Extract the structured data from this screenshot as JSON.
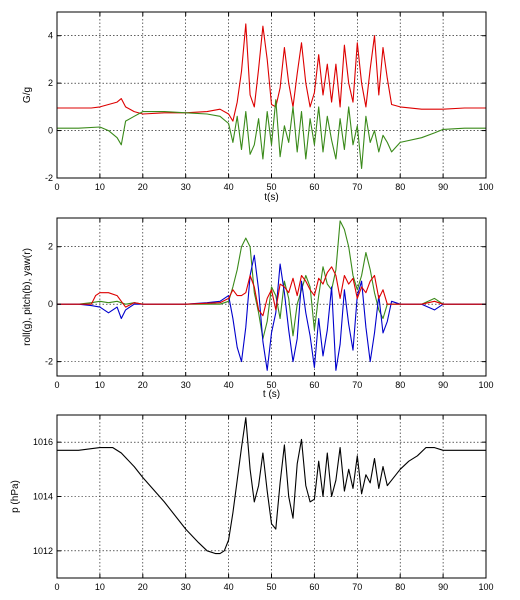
{
  "chart_data": [
    {
      "type": "line",
      "xlabel": "t(s)",
      "ylabel": "G/g",
      "xlim": [
        0,
        100
      ],
      "ylim": [
        -2,
        5
      ],
      "xticks": [
        "0",
        "10",
        "20",
        "30",
        "40",
        "50",
        "60",
        "70",
        "80",
        "90",
        "100"
      ],
      "yticks": [
        "-2",
        "0",
        "2",
        "4"
      ],
      "grid": true,
      "series": [
        {
          "color": "#dd0000",
          "x": [
            0,
            5,
            8,
            10,
            12,
            14,
            15,
            16,
            18,
            20,
            25,
            30,
            35,
            38,
            40,
            41,
            42,
            43,
            44,
            45,
            46,
            47,
            48,
            49,
            50,
            51,
            52,
            53,
            54,
            55,
            56,
            57,
            58,
            59,
            60,
            61,
            62,
            63,
            64,
            65,
            66,
            67,
            68,
            69,
            70,
            71,
            72,
            73,
            74,
            75,
            76,
            77,
            78,
            80,
            85,
            90,
            95,
            100
          ],
          "y": [
            0.95,
            0.95,
            0.95,
            1.0,
            1.1,
            1.2,
            1.35,
            1.0,
            0.8,
            0.7,
            0.75,
            0.75,
            0.8,
            0.9,
            0.7,
            0.4,
            1.2,
            2.5,
            4.5,
            1.5,
            1.0,
            2.6,
            4.4,
            3.0,
            1.1,
            1.0,
            1.8,
            3.5,
            2.0,
            1.0,
            2.4,
            3.7,
            2.0,
            1.0,
            1.6,
            3.2,
            1.5,
            2.8,
            1.2,
            2.8,
            1.0,
            3.6,
            2.0,
            1.2,
            3.7,
            2.0,
            1.0,
            2.6,
            4.0,
            1.5,
            3.5,
            2.2,
            1.1,
            1.0,
            0.9,
            0.9,
            0.95,
            0.95
          ]
        },
        {
          "color": "#3a8a1a",
          "x": [
            0,
            5,
            10,
            12,
            14,
            15,
            16,
            18,
            20,
            25,
            30,
            35,
            38,
            40,
            41,
            42,
            43,
            44,
            45,
            46,
            47,
            48,
            49,
            50,
            51,
            52,
            53,
            54,
            55,
            56,
            57,
            58,
            59,
            60,
            61,
            62,
            63,
            64,
            65,
            66,
            67,
            68,
            69,
            70,
            71,
            72,
            73,
            74,
            75,
            76,
            77,
            78,
            80,
            85,
            88,
            90,
            95,
            100
          ],
          "y": [
            0.1,
            0.1,
            0.15,
            0.0,
            -0.3,
            -0.6,
            0.4,
            0.6,
            0.8,
            0.8,
            0.75,
            0.7,
            0.6,
            0.3,
            -0.5,
            0.6,
            -0.8,
            0.8,
            -1.0,
            -0.6,
            0.5,
            -1.2,
            0.8,
            -0.6,
            1.3,
            -1.1,
            0.2,
            -0.5,
            1.0,
            -0.9,
            0.8,
            -1.2,
            0.5,
            -0.6,
            1.0,
            -0.9,
            0.6,
            -0.4,
            -1.2,
            0.5,
            -0.8,
            1.0,
            -0.6,
            0.2,
            -1.6,
            0.6,
            -0.5,
            0.0,
            -0.9,
            -0.2,
            -0.5,
            -0.9,
            -0.5,
            -0.3,
            -0.1,
            0.05,
            0.1,
            0.1
          ]
        }
      ]
    },
    {
      "type": "line",
      "xlabel": "t (s)",
      "ylabel": "roll(g), pitch(b), yaw(r)",
      "xlim": [
        0,
        100
      ],
      "ylim": [
        -2.5,
        3
      ],
      "xticks": [
        "0",
        "10",
        "20",
        "30",
        "40",
        "50",
        "60",
        "70",
        "80",
        "90",
        "100"
      ],
      "yticks": [
        "-2",
        "0",
        "2"
      ],
      "grid": true,
      "series": [
        {
          "color": "#3a8a1a",
          "x": [
            0,
            5,
            8,
            10,
            12,
            14,
            16,
            18,
            20,
            30,
            38,
            40,
            41,
            42,
            43,
            44,
            45,
            46,
            47,
            48,
            49,
            50,
            51,
            52,
            53,
            54,
            55,
            56,
            57,
            58,
            59,
            60,
            61,
            62,
            63,
            64,
            65,
            66,
            67,
            68,
            69,
            70,
            71,
            72,
            73,
            74,
            75,
            76,
            77,
            80,
            85,
            88,
            90,
            100
          ],
          "y": [
            0.0,
            0.0,
            0.05,
            0.1,
            0.05,
            0.1,
            0.0,
            0.05,
            0.0,
            0.0,
            0.0,
            0.1,
            0.6,
            1.2,
            2.0,
            2.3,
            2.0,
            0.4,
            -0.3,
            -1.2,
            -0.6,
            0.6,
            0.3,
            -0.5,
            0.8,
            0.2,
            -1.1,
            0.0,
            0.5,
            1.0,
            0.6,
            -0.9,
            0.3,
            1.3,
            0.7,
            0.5,
            1.2,
            2.9,
            2.6,
            2.0,
            1.0,
            0.5,
            1.0,
            1.8,
            1.2,
            0.4,
            -0.2,
            -0.5,
            0.0,
            0.0,
            0.0,
            0.2,
            0.0,
            0.0
          ]
        },
        {
          "color": "#0000cc",
          "x": [
            0,
            5,
            8,
            10,
            12,
            14,
            15,
            16,
            18,
            20,
            30,
            35,
            38,
            40,
            41,
            42,
            43,
            44,
            45,
            46,
            47,
            48,
            49,
            50,
            51,
            52,
            53,
            54,
            55,
            56,
            57,
            58,
            59,
            60,
            61,
            62,
            63,
            64,
            65,
            66,
            67,
            68,
            69,
            70,
            71,
            72,
            73,
            74,
            75,
            76,
            77,
            78,
            80,
            85,
            88,
            90,
            100
          ],
          "y": [
            0.0,
            0.0,
            -0.05,
            -0.1,
            -0.3,
            -0.1,
            -0.5,
            -0.2,
            0.0,
            0.0,
            0.0,
            0.05,
            0.1,
            0.3,
            -0.5,
            -1.5,
            -2.0,
            -0.8,
            1.0,
            1.7,
            0.5,
            -1.3,
            -2.3,
            -1.0,
            -0.3,
            1.4,
            0.4,
            -0.9,
            -2.0,
            -1.2,
            0.8,
            -0.3,
            -1.1,
            -2.2,
            -0.5,
            -1.8,
            -0.9,
            0.6,
            -2.3,
            -1.4,
            0.5,
            -0.7,
            -1.6,
            0.3,
            0.8,
            -0.8,
            -2.0,
            -1.0,
            0.3,
            -1.0,
            -0.6,
            0.1,
            0.0,
            0.0,
            -0.2,
            0.0,
            0.0
          ]
        },
        {
          "color": "#dd0000",
          "x": [
            0,
            5,
            8,
            9,
            10,
            12,
            14,
            15,
            16,
            18,
            20,
            30,
            38,
            40,
            41,
            42,
            43,
            44,
            45,
            46,
            47,
            48,
            49,
            50,
            51,
            52,
            53,
            54,
            55,
            56,
            57,
            58,
            59,
            60,
            61,
            62,
            63,
            64,
            65,
            66,
            67,
            68,
            69,
            70,
            71,
            72,
            73,
            74,
            75,
            76,
            77,
            80,
            85,
            88,
            90,
            100
          ],
          "y": [
            0.0,
            0.0,
            0.0,
            0.3,
            0.4,
            0.4,
            0.3,
            0.1,
            -0.1,
            0.05,
            0.0,
            0.0,
            0.05,
            0.2,
            0.5,
            0.3,
            0.3,
            0.4,
            1.0,
            0.6,
            -0.2,
            -0.4,
            0.2,
            0.5,
            -0.2,
            0.7,
            0.6,
            0.4,
            0.9,
            0.3,
            1.0,
            0.8,
            0.5,
            0.3,
            0.9,
            0.7,
            1.1,
            1.3,
            1.0,
            0.2,
            1.0,
            0.7,
            0.9,
            0.2,
            0.6,
            0.4,
            0.8,
            1.0,
            0.2,
            0.5,
            0.0,
            0.0,
            0.0,
            0.1,
            0.0,
            0.0
          ]
        }
      ]
    },
    {
      "type": "line",
      "xlabel": "",
      "ylabel": "p (hPa)",
      "xlim": [
        0,
        100
      ],
      "ylim": [
        1011,
        1017
      ],
      "xticks": [
        "0",
        "10",
        "20",
        "30",
        "40",
        "50",
        "60",
        "70",
        "80",
        "90",
        "100"
      ],
      "yticks": [
        "1012",
        "1014",
        "1016"
      ],
      "grid": true,
      "series": [
        {
          "color": "#000000",
          "x": [
            0,
            5,
            10,
            13,
            15,
            18,
            20,
            25,
            30,
            33,
            35,
            37,
            38,
            39,
            40,
            41,
            42,
            43,
            44,
            45,
            46,
            47,
            48,
            49,
            50,
            51,
            52,
            53,
            54,
            55,
            56,
            57,
            58,
            59,
            60,
            61,
            62,
            63,
            64,
            65,
            66,
            67,
            68,
            69,
            70,
            71,
            72,
            73,
            74,
            75,
            76,
            77,
            78,
            80,
            82,
            84,
            86,
            88,
            90,
            95,
            100
          ],
          "y": [
            1015.7,
            1015.7,
            1015.8,
            1015.8,
            1015.6,
            1015.1,
            1014.7,
            1013.8,
            1012.8,
            1012.3,
            1012.0,
            1011.9,
            1011.9,
            1012.0,
            1012.4,
            1013.4,
            1014.6,
            1015.8,
            1016.9,
            1015.0,
            1013.8,
            1014.4,
            1015.6,
            1014.2,
            1013.0,
            1012.8,
            1014.5,
            1015.9,
            1014.0,
            1013.2,
            1015.2,
            1016.1,
            1014.4,
            1013.8,
            1013.9,
            1015.3,
            1014.0,
            1015.6,
            1014.0,
            1014.6,
            1015.8,
            1014.2,
            1015.0,
            1014.3,
            1015.5,
            1014.1,
            1014.8,
            1014.5,
            1015.4,
            1014.3,
            1015.1,
            1014.4,
            1014.6,
            1015.0,
            1015.3,
            1015.5,
            1015.8,
            1015.8,
            1015.7,
            1015.7,
            1015.7
          ]
        }
      ]
    }
  ]
}
